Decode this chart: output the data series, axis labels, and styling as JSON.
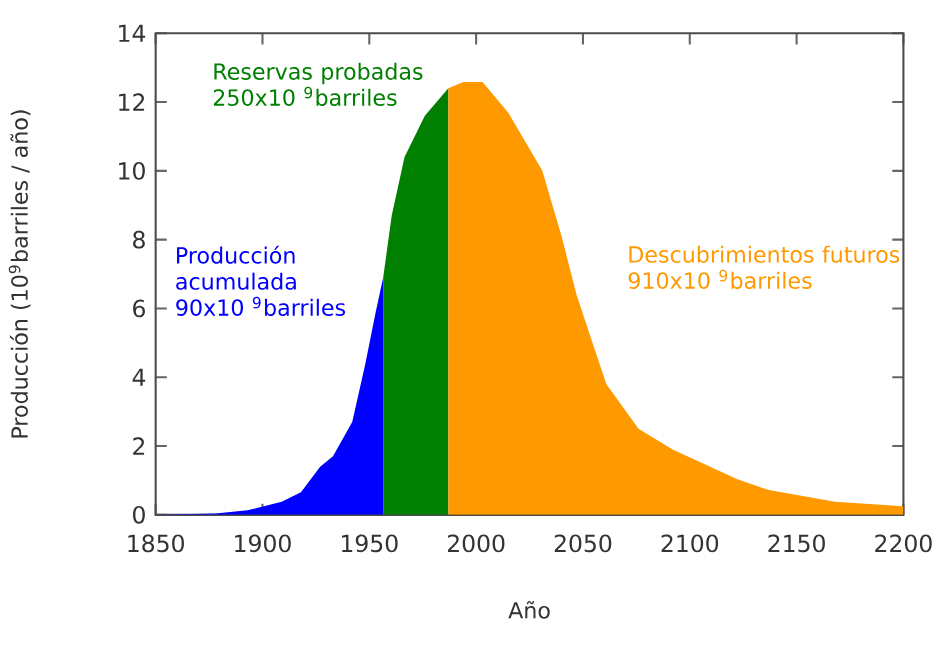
{
  "chart_data": {
    "type": "area",
    "xlabel": "Año",
    "ylabel": "Producción (10$^{9}$barriles / año)",
    "xlim": [
      1850,
      2200
    ],
    "xticks": [
      1850,
      1900,
      1950,
      2000,
      2050,
      2100,
      2150,
      2200
    ],
    "ylim": [
      0,
      14
    ],
    "yticks": [
      0,
      2,
      4,
      6,
      8,
      10,
      12,
      14
    ],
    "grid": false,
    "series": [
      {
        "name": "Producción acumulada 90x10 $^{9}$barriles",
        "color": "#0000ff",
        "x": [
          1850,
          1878,
          1893,
          1909,
          1918,
          1927,
          1933,
          1942,
          1948,
          1953,
          1956.5
        ],
        "values": [
          0,
          0.04,
          0.13,
          0.38,
          0.66,
          1.4,
          1.7,
          2.7,
          4.35,
          5.9,
          6.9
        ]
      },
      {
        "name": "Reservas probadas 250x10 $^{9}$barriles",
        "color": "#007f00",
        "x": [
          1956.5,
          1960.5,
          1966.5,
          1976,
          1987
        ],
        "values": [
          6.9,
          8.7,
          10.4,
          11.6,
          12.4
        ]
      },
      {
        "name": "Descubrimientos futuros 910x10 $^{9}$barriles",
        "color": "#ff9900",
        "x": [
          1987,
          1994,
          2003,
          2015,
          2031,
          2040,
          2047,
          2055,
          2061,
          2076,
          2092,
          2122,
          2137,
          2168,
          2200
        ],
        "values": [
          12.4,
          12.58,
          12.58,
          11.7,
          10.0,
          8.1,
          6.4,
          4.9,
          3.8,
          2.5,
          1.9,
          1.04,
          0.72,
          0.38,
          0.25
        ]
      }
    ]
  }
}
